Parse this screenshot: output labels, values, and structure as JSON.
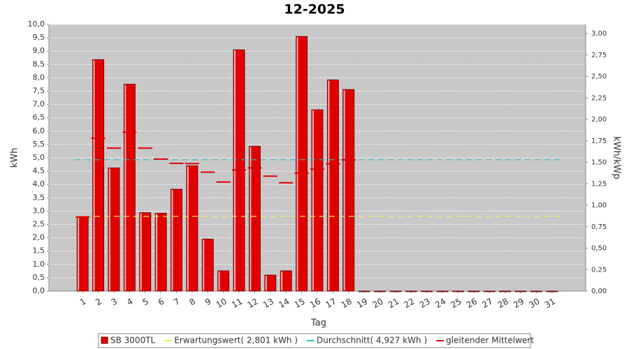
{
  "chart_data": {
    "type": "bar",
    "title": "12-2025",
    "x_label": "Tag",
    "y_label": "kWh",
    "y2_label": "kWh/kWp",
    "categories": [
      "1",
      "2",
      "3",
      "4",
      "5",
      "6",
      "7",
      "8",
      "9",
      "10",
      "11",
      "12",
      "13",
      "14",
      "15",
      "16",
      "17",
      "18",
      "19",
      "20",
      "21",
      "22",
      "23",
      "24",
      "25",
      "26",
      "27",
      "28",
      "29",
      "30",
      "31"
    ],
    "ylim": [
      0,
      10
    ],
    "yticks": [
      {
        "value": 0,
        "label": "0,0"
      },
      {
        "value": 0.5,
        "label": "0,5"
      },
      {
        "value": 1,
        "label": "1,0"
      },
      {
        "value": 1.5,
        "label": "1,5"
      },
      {
        "value": 2,
        "label": "2,0"
      },
      {
        "value": 2.5,
        "label": "2,5"
      },
      {
        "value": 3,
        "label": "3,0"
      },
      {
        "value": 3.5,
        "label": "3,5"
      },
      {
        "value": 4,
        "label": "4,0"
      },
      {
        "value": 4.5,
        "label": "4,5"
      },
      {
        "value": 5,
        "label": "5,0"
      },
      {
        "value": 5.5,
        "label": "5,5"
      },
      {
        "value": 6,
        "label": "6,0"
      },
      {
        "value": 6.5,
        "label": "6,5"
      },
      {
        "value": 7,
        "label": "7,0"
      },
      {
        "value": 7.5,
        "label": "7,5"
      },
      {
        "value": 8,
        "label": "8,0"
      },
      {
        "value": 8.5,
        "label": "8,5"
      },
      {
        "value": 9,
        "label": "9,0"
      },
      {
        "value": 9.5,
        "label": "9,5"
      },
      {
        "value": 10,
        "label": "10,0"
      }
    ],
    "y2lim": [
      0,
      3.106
    ],
    "y2ticks": [
      {
        "value": 0,
        "label": "0,00"
      },
      {
        "value": 0.25,
        "label": "0,25"
      },
      {
        "value": 0.5,
        "label": "0,50"
      },
      {
        "value": 0.75,
        "label": "0,75"
      },
      {
        "value": 1,
        "label": "1,00"
      },
      {
        "value": 1.25,
        "label": "1,25"
      },
      {
        "value": 1.5,
        "label": "1,50"
      },
      {
        "value": 1.75,
        "label": "1,75"
      },
      {
        "value": 2,
        "label": "2,00"
      },
      {
        "value": 2.25,
        "label": "2,25"
      },
      {
        "value": 2.5,
        "label": "2,50"
      },
      {
        "value": 2.75,
        "label": "2,75"
      },
      {
        "value": 3,
        "label": "3,00"
      }
    ],
    "grid": true,
    "series": [
      {
        "name": "SB 3000TL",
        "color": "#e00000",
        "type": "bar",
        "values": [
          2.78,
          8.68,
          4.62,
          7.76,
          2.94,
          2.92,
          3.82,
          4.7,
          1.95,
          0.76,
          9.05,
          5.43,
          0.6,
          0.76,
          9.55,
          6.8,
          7.92,
          7.56,
          0,
          0,
          0,
          0,
          0,
          0,
          0,
          0,
          0,
          0,
          0,
          0,
          0
        ]
      },
      {
        "name": "Erwartungswert( 2,801 kWh )",
        "color": "#f0f060",
        "type": "hline",
        "value": 2.801
      },
      {
        "name": "Durchschnitt( 4,927 kWh )",
        "color": "#30c0c0",
        "type": "hline",
        "value": 4.927
      },
      {
        "name": "gleitender Mittelwert",
        "color": "#e00000",
        "type": "step",
        "values": [
          2.78,
          5.73,
          5.36,
          5.96,
          5.36,
          4.95,
          4.79,
          4.78,
          4.46,
          4.09,
          4.54,
          4.62,
          4.31,
          4.06,
          4.42,
          4.57,
          4.77,
          4.92,
          null,
          null,
          null,
          null,
          null,
          null,
          null,
          null,
          null,
          null,
          null,
          null,
          null
        ]
      }
    ]
  }
}
